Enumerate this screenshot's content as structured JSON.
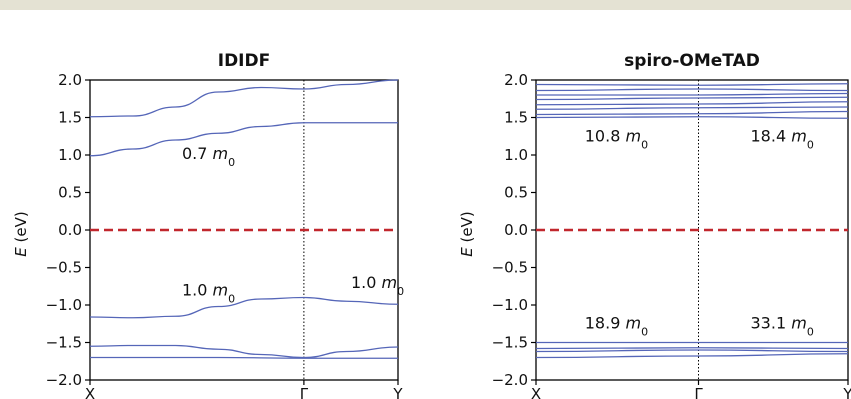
{
  "chart_data": [
    {
      "type": "line",
      "title": "IDIDF",
      "ylabel_italic": "E",
      "ylabel_unit": " (eV)",
      "ylim": [
        -2.0,
        2.0
      ],
      "yticks": [
        "2.0",
        "1.5",
        "1.0",
        "0.5",
        "0.0",
        "−0.5",
        "−1.0",
        "−1.5",
        "−2.0"
      ],
      "ytick_values": [
        2.0,
        1.5,
        1.0,
        0.5,
        0.0,
        -0.5,
        -1.0,
        -1.5,
        -2.0
      ],
      "kpoints": [
        "X",
        "Γ",
        "Y"
      ],
      "kpoint_positions": [
        0,
        1,
        1.44
      ],
      "fermi_level": 0.0,
      "bands": [
        {
          "x": [
            0,
            0.2,
            0.4,
            0.6,
            0.8,
            1.0,
            1.2,
            1.44
          ],
          "y": [
            1.51,
            1.52,
            1.64,
            1.84,
            1.9,
            1.88,
            1.94,
            2.0
          ]
        },
        {
          "x": [
            0,
            0.2,
            0.4,
            0.6,
            0.8,
            1.0,
            1.2,
            1.44
          ],
          "y": [
            0.99,
            1.08,
            1.2,
            1.29,
            1.38,
            1.43,
            1.43,
            1.43
          ]
        },
        {
          "x": [
            0,
            0.2,
            0.4,
            0.6,
            0.8,
            1.0,
            1.2,
            1.44
          ],
          "y": [
            -1.16,
            -1.17,
            -1.15,
            -1.02,
            -0.92,
            -0.9,
            -0.95,
            -0.99
          ]
        },
        {
          "x": [
            0,
            0.2,
            0.4,
            0.6,
            0.8,
            1.0,
            1.2,
            1.44
          ],
          "y": [
            -1.55,
            -1.54,
            -1.54,
            -1.59,
            -1.66,
            -1.7,
            -1.62,
            -1.56
          ]
        },
        {
          "x": [
            0,
            0.3,
            0.6,
            1.0,
            1.2,
            1.44
          ],
          "y": [
            -1.7,
            -1.7,
            -1.7,
            -1.71,
            -1.71,
            -1.71
          ]
        }
      ],
      "annotations": [
        {
          "value": "0.7",
          "unit": "m",
          "sub": "0",
          "x": 0.43,
          "y": 0.95
        },
        {
          "value": "1.0",
          "unit": "m",
          "sub": "0",
          "x": 0.43,
          "y": -0.87
        },
        {
          "value": "1.0",
          "unit": "m",
          "sub": "0",
          "x": 1.22,
          "y": -0.77
        }
      ]
    },
    {
      "type": "line",
      "title": "spiro-OMeTAD",
      "ylabel_italic": "E",
      "ylabel_unit": " (eV)",
      "ylim": [
        -2.0,
        2.0
      ],
      "yticks": [
        "2.0",
        "1.5",
        "1.0",
        "0.5",
        "0.0",
        "−0.5",
        "−1.0",
        "−1.5",
        "−2.0"
      ],
      "ytick_values": [
        2.0,
        1.5,
        1.0,
        0.5,
        0.0,
        -0.5,
        -1.0,
        -1.5,
        -2.0
      ],
      "kpoints": [
        "X",
        "Γ",
        "Y"
      ],
      "kpoint_positions": [
        0,
        1,
        1.92
      ],
      "fermi_level": 0.0,
      "bands": [
        {
          "x": [
            0,
            1,
            1.92
          ],
          "y": [
            1.5,
            1.51,
            1.49
          ]
        },
        {
          "x": [
            0,
            1,
            1.92
          ],
          "y": [
            1.54,
            1.55,
            1.58
          ]
        },
        {
          "x": [
            0,
            1,
            1.92
          ],
          "y": [
            1.61,
            1.63,
            1.64
          ]
        },
        {
          "x": [
            0,
            1,
            1.92
          ],
          "y": [
            1.67,
            1.68,
            1.71
          ]
        },
        {
          "x": [
            0,
            1,
            1.92
          ],
          "y": [
            1.74,
            1.76,
            1.77
          ]
        },
        {
          "x": [
            0,
            1,
            1.92
          ],
          "y": [
            1.8,
            1.8,
            1.82
          ]
        },
        {
          "x": [
            0,
            1,
            1.92
          ],
          "y": [
            1.86,
            1.88,
            1.86
          ]
        },
        {
          "x": [
            0,
            1,
            1.92
          ],
          "y": [
            1.94,
            1.93,
            1.95
          ]
        },
        {
          "x": [
            0,
            1,
            1.92
          ],
          "y": [
            -1.5,
            -1.5,
            -1.5
          ]
        },
        {
          "x": [
            0,
            1,
            1.92
          ],
          "y": [
            -1.58,
            -1.57,
            -1.58
          ]
        },
        {
          "x": [
            0,
            1,
            1.92
          ],
          "y": [
            -1.62,
            -1.6,
            -1.62
          ]
        },
        {
          "x": [
            0,
            1,
            1.92
          ],
          "y": [
            -1.7,
            -1.68,
            -1.65
          ]
        }
      ],
      "annotations": [
        {
          "value": "10.8",
          "unit": "m",
          "sub": "0",
          "x": 0.3,
          "y": 1.18
        },
        {
          "value": "18.4",
          "unit": "m",
          "sub": "0",
          "x": 1.32,
          "y": 1.18
        },
        {
          "value": "18.9",
          "unit": "m",
          "sub": "0",
          "x": 0.3,
          "y": -1.31
        },
        {
          "value": "33.1",
          "unit": "m",
          "sub": "0",
          "x": 1.32,
          "y": -1.31
        }
      ]
    }
  ],
  "colors": {
    "band": "#5566b8",
    "fermi": "#c1272d",
    "axis": "#000000",
    "topbar": "#e4e2d3"
  }
}
